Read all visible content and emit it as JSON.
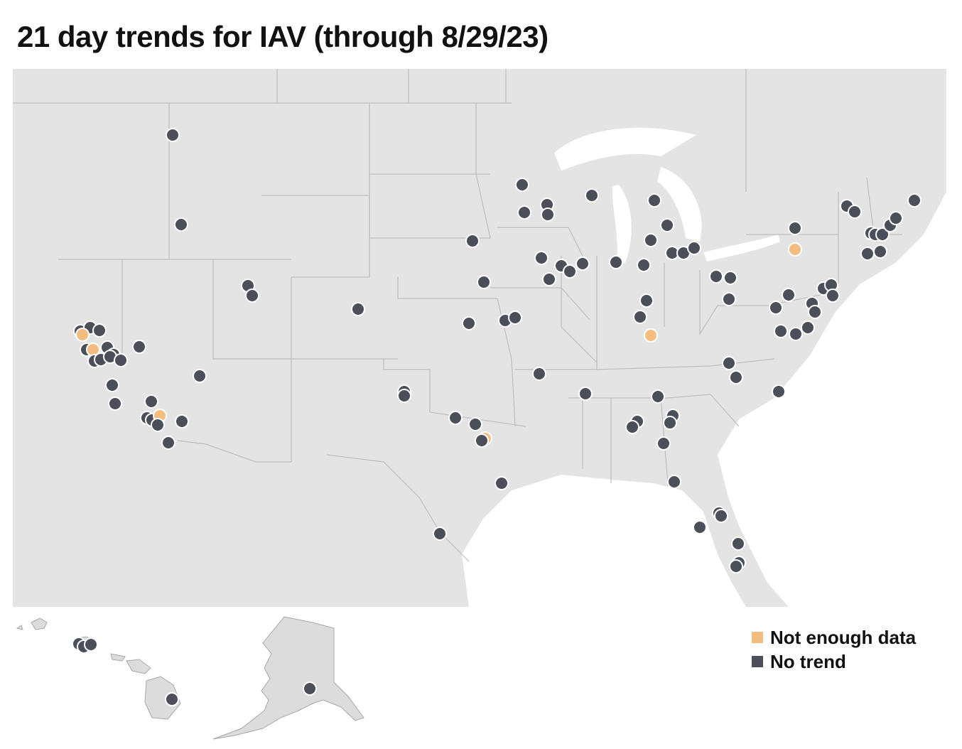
{
  "title": "21 day trends for IAV (through 8/29/23)",
  "colors": {
    "not_enough_data": "#f5bc80",
    "no_trend": "#4a4f5a",
    "land": "#e4e4e4",
    "border": "#bdbdbd",
    "water": "#ffffff"
  },
  "legend": [
    {
      "label": "Not enough data",
      "category": "not_enough_data",
      "color": "#f5bc80"
    },
    {
      "label": "No trend",
      "category": "no_trend",
      "color": "#4a4f5a"
    }
  ],
  "map": {
    "no_trend_count": 124,
    "not_enough_data_count": 6,
    "marker_colors": {
      "not_enough_data": "#f5bc80",
      "no_trend": "#4a4f5a"
    }
  }
}
